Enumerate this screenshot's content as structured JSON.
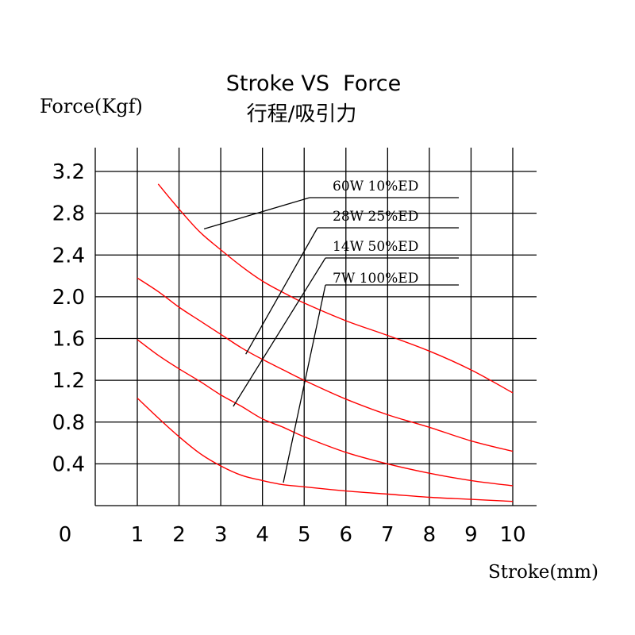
{
  "chart_data": {
    "type": "line",
    "title": "Stroke VS  Force",
    "subtitle": "行程/吸引力",
    "ylabel": "Force(Kgf)",
    "xlabel": "Stroke(mm)",
    "origin_label": "0",
    "x_ticks": [
      "1",
      "2",
      "3",
      "4",
      "5",
      "6",
      "7",
      "8",
      "9",
      "10"
    ],
    "y_ticks": [
      "0.4",
      "0.8",
      "1.2",
      "1.6",
      "2.0",
      "2.4",
      "2.8",
      "3.2"
    ],
    "xlim": [
      0,
      10
    ],
    "ylim": [
      0,
      3.2
    ],
    "grid": true,
    "series_color": "#ff0000",
    "grid_color": "#000000",
    "series": [
      {
        "name": "60W  10%ED",
        "x": [
          1.5,
          2,
          2.5,
          3,
          3.5,
          4,
          4.5,
          5,
          6,
          7,
          8,
          9,
          10
        ],
        "y": [
          3.08,
          2.84,
          2.62,
          2.45,
          2.29,
          2.15,
          2.04,
          1.94,
          1.77,
          1.63,
          1.48,
          1.3,
          1.08
        ]
      },
      {
        "name": "28W  25%ED",
        "x": [
          1,
          1.5,
          2,
          2.5,
          3,
          3.5,
          4,
          4.5,
          5,
          6,
          7,
          8,
          9,
          10
        ],
        "y": [
          2.18,
          2.05,
          1.9,
          1.77,
          1.64,
          1.51,
          1.4,
          1.3,
          1.2,
          1.02,
          0.87,
          0.75,
          0.62,
          0.52
        ]
      },
      {
        "name": "14W  50%ED",
        "x": [
          1,
          1.5,
          2,
          2.5,
          3,
          3.5,
          4,
          4.5,
          5,
          6,
          7,
          8,
          9,
          10
        ],
        "y": [
          1.59,
          1.44,
          1.31,
          1.19,
          1.06,
          0.95,
          0.83,
          0.75,
          0.66,
          0.51,
          0.4,
          0.31,
          0.24,
          0.19
        ]
      },
      {
        "name": "7W   100%ED",
        "x": [
          1,
          1.5,
          2,
          2.5,
          3,
          3.5,
          4,
          4.5,
          5,
          6,
          7,
          8,
          9,
          10
        ],
        "y": [
          1.03,
          0.84,
          0.66,
          0.5,
          0.38,
          0.29,
          0.24,
          0.2,
          0.18,
          0.14,
          0.11,
          0.08,
          0.06,
          0.04
        ]
      }
    ],
    "legend_pointers": [
      {
        "series": "60W  10%ED",
        "x": 2.6,
        "y": 2.65
      },
      {
        "series": "28W  25%ED",
        "x": 3.6,
        "y": 1.45
      },
      {
        "series": "14W  50%ED",
        "x": 3.3,
        "y": 0.95
      },
      {
        "series": "7W   100%ED",
        "x": 4.5,
        "y": 0.22
      }
    ]
  }
}
